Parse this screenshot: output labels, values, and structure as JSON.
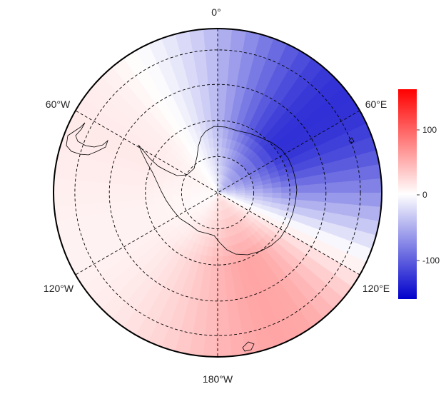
{
  "chart_data": {
    "type": "heatmap",
    "title": "",
    "projection": "south polar stereographic",
    "longitude_labels": [
      "0°",
      "60°E",
      "120°E",
      "180°W",
      "120°W",
      "60°W"
    ],
    "colorbar": {
      "ticks": [
        100,
        0,
        -100
      ],
      "tick_labels": [
        "100",
        "0",
        "-100"
      ],
      "range": [
        -160,
        160
      ],
      "colors": {
        "low": "#0000cc",
        "mid": "#ffffff",
        "high": "#ff0000"
      }
    },
    "field_description_lobes": [
      {
        "lon_center": 60,
        "value": -150
      },
      {
        "lon_center": 135,
        "value": 80
      },
      {
        "lon_center": -35,
        "value": 20
      }
    ],
    "grid": true
  },
  "colors": {
    "coast": "#000000",
    "grid": "#000000",
    "border": "#000000"
  }
}
